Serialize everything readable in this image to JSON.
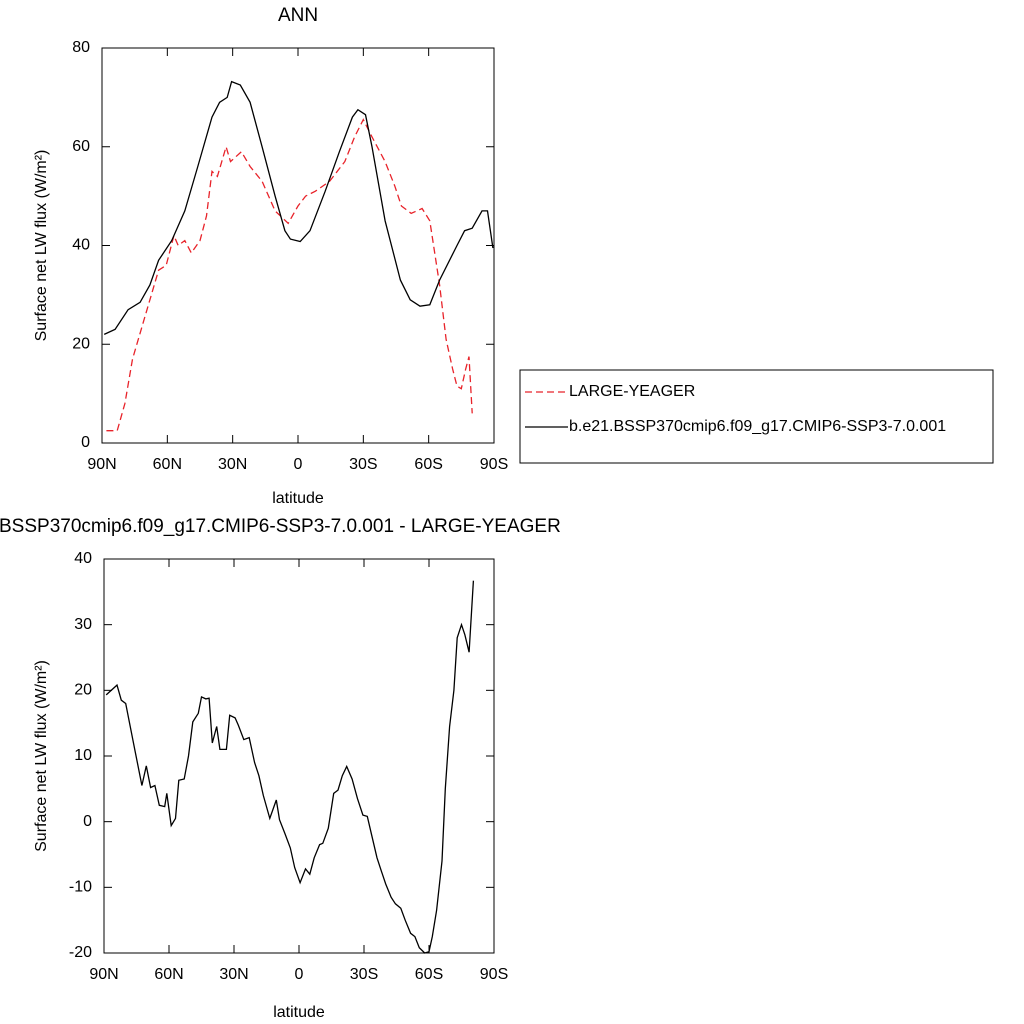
{
  "chart_data": [
    {
      "type": "line",
      "title": "ANN",
      "xlabel": "latitude",
      "ylabel": "Surface net LW flux (W/m²)",
      "xlim": [
        90,
        -90
      ],
      "xticks": [
        {
          "value": 90,
          "label": "90N"
        },
        {
          "value": 60,
          "label": "60N"
        },
        {
          "value": 30,
          "label": "30N"
        },
        0,
        {
          "value": -30,
          "label": "30S"
        },
        {
          "value": -60,
          "label": "60S"
        },
        {
          "value": -90,
          "label": "90S"
        }
      ],
      "ylim": [
        0,
        80
      ],
      "yticks": [
        0,
        20,
        40,
        60,
        80
      ],
      "legend_position": "right",
      "series": [
        {
          "name": "LARGE-YEAGER",
          "color": "#e8232a",
          "dash": true,
          "x": [
            88,
            83,
            79.5,
            76,
            72,
            68,
            64,
            60.5,
            57,
            55,
            52,
            49,
            45,
            42,
            39.5,
            37,
            33,
            31,
            26,
            22,
            16.5,
            10.5,
            4.5,
            0,
            -3.5,
            -8,
            -14.5,
            -21.5,
            -26,
            -30,
            -34,
            -40,
            -44.5,
            -47.5,
            -52,
            -57,
            -60.5,
            -65,
            -68,
            -71,
            -73,
            -75,
            -77,
            -78.5,
            -80
          ],
          "values": [
            2.5,
            2.5,
            8,
            17,
            23,
            29,
            35,
            36,
            42,
            40,
            41,
            38.5,
            41,
            46,
            55,
            54,
            60,
            57,
            59,
            56,
            53,
            47,
            44.5,
            48,
            50,
            51,
            53,
            57,
            62,
            65.5,
            62,
            57,
            52,
            48,
            46.5,
            47.5,
            45,
            32,
            21,
            15,
            11.5,
            11,
            15,
            17.5,
            6
          ]
        },
        {
          "name": "b.e21.BSSP370cmip6.f09_g17.CMIP6-SSP3-7.0.001",
          "color": "#000000",
          "dash": false,
          "x": [
            89,
            84,
            78,
            72.5,
            68,
            64,
            58,
            52,
            46,
            39.5,
            36,
            32.5,
            30.5,
            26.5,
            22,
            16.5,
            10.5,
            6,
            3.5,
            -1,
            -5.5,
            -12.5,
            -19,
            -25,
            -27.5,
            -31,
            -34,
            -40,
            -47,
            -51.5,
            -56,
            -60.5,
            -65,
            -73,
            -76.5,
            -80,
            -84.5,
            -87,
            -89.5
          ],
          "values": [
            22,
            23,
            27,
            28.5,
            32,
            37,
            41,
            47,
            56,
            66,
            69,
            70,
            73.2,
            72.5,
            69,
            60,
            50,
            43,
            41.3,
            40.8,
            43,
            51,
            59,
            66,
            67.5,
            66.5,
            60,
            45,
            33,
            29,
            27.7,
            28,
            33,
            40,
            43,
            43.5,
            47,
            47,
            39.5
          ]
        }
      ]
    },
    {
      "type": "line",
      "title": "BSSP370cmip6.f09_g17.CMIP6-SSP3-7.0.001 - LARGE-YEAGER",
      "xlabel": "latitude",
      "ylabel": "Surface net LW flux (W/m²)",
      "xlim": [
        90,
        -90
      ],
      "xticks": [
        {
          "value": 90,
          "label": "90N"
        },
        {
          "value": 60,
          "label": "60N"
        },
        {
          "value": 30,
          "label": "30N"
        },
        0,
        {
          "value": -30,
          "label": "30S"
        },
        {
          "value": -60,
          "label": "60S"
        },
        {
          "value": -90,
          "label": "90S"
        }
      ],
      "ylim": [
        -20,
        40
      ],
      "yticks": [
        -20,
        -10,
        0,
        10,
        20,
        30,
        40
      ],
      "series": [
        {
          "color": "#000000",
          "dash": false,
          "x": [
            89,
            84,
            82,
            80,
            75.5,
            72.5,
            70.5,
            68.5,
            66.5,
            64.5,
            62,
            61,
            59,
            57,
            55.5,
            53,
            51,
            49,
            46.5,
            45,
            43,
            41.5,
            40,
            38,
            36.5,
            33.5,
            32,
            29.5,
            28,
            25.5,
            23,
            20.5,
            18.5,
            16.5,
            13.5,
            10.5,
            9,
            6.5,
            4,
            2,
            -0.5,
            -3,
            -5,
            -7,
            -9.5,
            -11,
            -13.5,
            -16,
            -18,
            -20,
            -22,
            -24.5,
            -27,
            -29.5,
            -31.5,
            -33.5,
            -36,
            -38,
            -40,
            -42.5,
            -44.5,
            -47,
            -49,
            -51.5,
            -53.5,
            -55.5,
            -58,
            -60,
            -61.5,
            -63.5,
            -66,
            -67.5,
            -69.5,
            -71.5,
            -73,
            -75,
            -76.5,
            -78.5,
            -80.5
          ],
          "values": [
            19.3,
            20.8,
            18.5,
            18,
            10.5,
            5.5,
            8.5,
            5.2,
            5.5,
            2.5,
            2.3,
            4.3,
            -0.6,
            0.5,
            6.3,
            6.5,
            10,
            15.2,
            16.5,
            19,
            18.7,
            18.8,
            12,
            14.5,
            11,
            11,
            16.2,
            15.8,
            14.7,
            12.5,
            12.8,
            9,
            7,
            4,
            0.5,
            3.3,
            0.3,
            -1.8,
            -4,
            -7,
            -9.3,
            -7.2,
            -8,
            -5.5,
            -3.5,
            -3.3,
            -1,
            4.3,
            4.8,
            7,
            8.4,
            6.5,
            3.5,
            1,
            0.8,
            -2,
            -5.5,
            -7.5,
            -9.5,
            -11.5,
            -12.5,
            -13.2,
            -15,
            -17,
            -17.5,
            -19.2,
            -20,
            -19.8,
            -17.5,
            -13.5,
            -6,
            5,
            14.5,
            20,
            28,
            30,
            28.5,
            25.8,
            36.7
          ]
        }
      ]
    }
  ]
}
